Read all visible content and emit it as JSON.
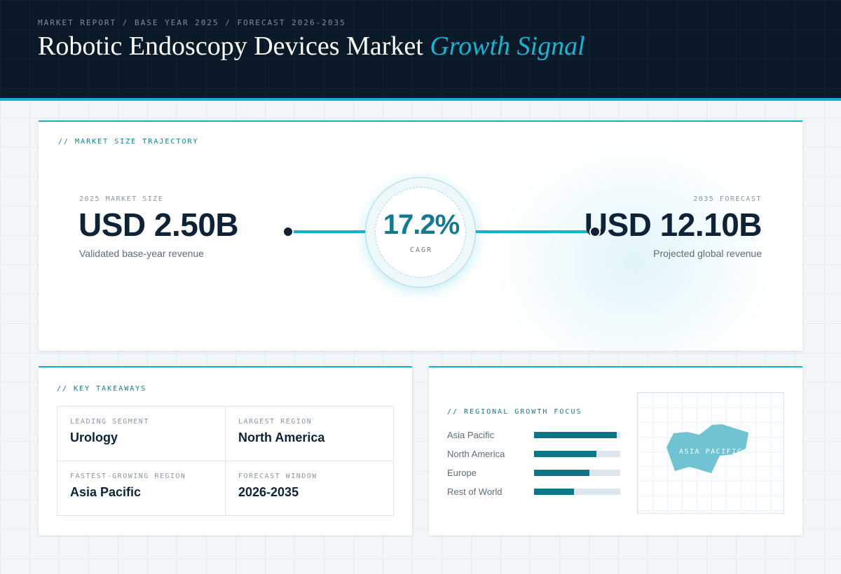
{
  "header": {
    "eyebrow": "MARKET REPORT / BASE YEAR 2025 / FORECAST 2026-2035",
    "title_main": "Robotic Endoscopy Devices Market ",
    "title_accent": "Growth Signal"
  },
  "trajectory": {
    "label": "// MARKET SIZE TRAJECTORY",
    "base": {
      "eyebrow": "2025 MARKET SIZE",
      "value": "USD 2.50B",
      "caption": "Validated base-year revenue"
    },
    "forecast": {
      "eyebrow": "2035 FORECAST",
      "value": "USD 12.10B",
      "caption": "Projected global revenue"
    },
    "cagr": {
      "value": "17.2%",
      "label": "CAGR"
    }
  },
  "takeaways": {
    "label": "// KEY TAKEAWAYS",
    "items": [
      {
        "label": "LEADING SEGMENT",
        "value": "Urology"
      },
      {
        "label": "LARGEST REGION",
        "value": "North America"
      },
      {
        "label": "FASTEST-GROWING REGION",
        "value": "Asia Pacific"
      },
      {
        "label": "FORECAST WINDOW",
        "value": "2026-2035"
      }
    ]
  },
  "regional": {
    "label": "// REGIONAL GROWTH FOCUS",
    "regions": [
      {
        "name": "Asia Pacific",
        "level": 0.96
      },
      {
        "name": "North America",
        "level": 0.72
      },
      {
        "name": "Europe",
        "level": 0.64
      },
      {
        "name": "Rest of World",
        "level": 0.46
      }
    ],
    "map_label": "ASIA PACIFIC"
  },
  "colors": {
    "header_bg": "#0b1a28",
    "accent": "#13b3cf",
    "teal_dark": "#0e7589",
    "navy": "#0e2238"
  }
}
